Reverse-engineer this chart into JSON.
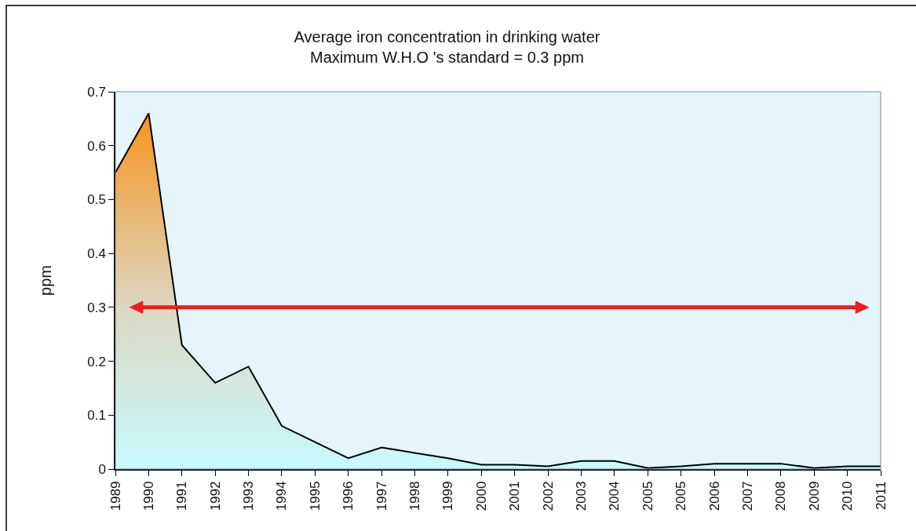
{
  "chart_data": {
    "type": "area",
    "title": "Average iron concentration in drinking water",
    "subtitle": "Maximum W.H.O 's standard = 0.3 ppm",
    "ylabel": "ppm",
    "categories": [
      "1989",
      "1990",
      "1991",
      "1992",
      "1993",
      "1994",
      "1995",
      "1996",
      "1997",
      "1998",
      "1999",
      "2000",
      "2001",
      "2002",
      "2003",
      "2004",
      "2005",
      "2005",
      "2006",
      "2007",
      "2008",
      "2009",
      "2010",
      "2011"
    ],
    "values": [
      0.55,
      0.66,
      0.23,
      0.16,
      0.19,
      0.08,
      0.05,
      0.02,
      0.04,
      0.03,
      0.02,
      0.008,
      0.008,
      0.005,
      0.015,
      0.015,
      0.002,
      0.005,
      0.01,
      0.01,
      0.01,
      0.002,
      0.005,
      0.005
    ],
    "color": "#f7941d",
    "ylim": [
      0,
      0.7
    ],
    "yticks": [
      0,
      0.1,
      0.2,
      0.3,
      0.4,
      0.5,
      0.6,
      0.7
    ],
    "ref_lines": [
      {
        "axis": "y",
        "value": 0.3,
        "color": "#ee1c1c"
      }
    ]
  }
}
